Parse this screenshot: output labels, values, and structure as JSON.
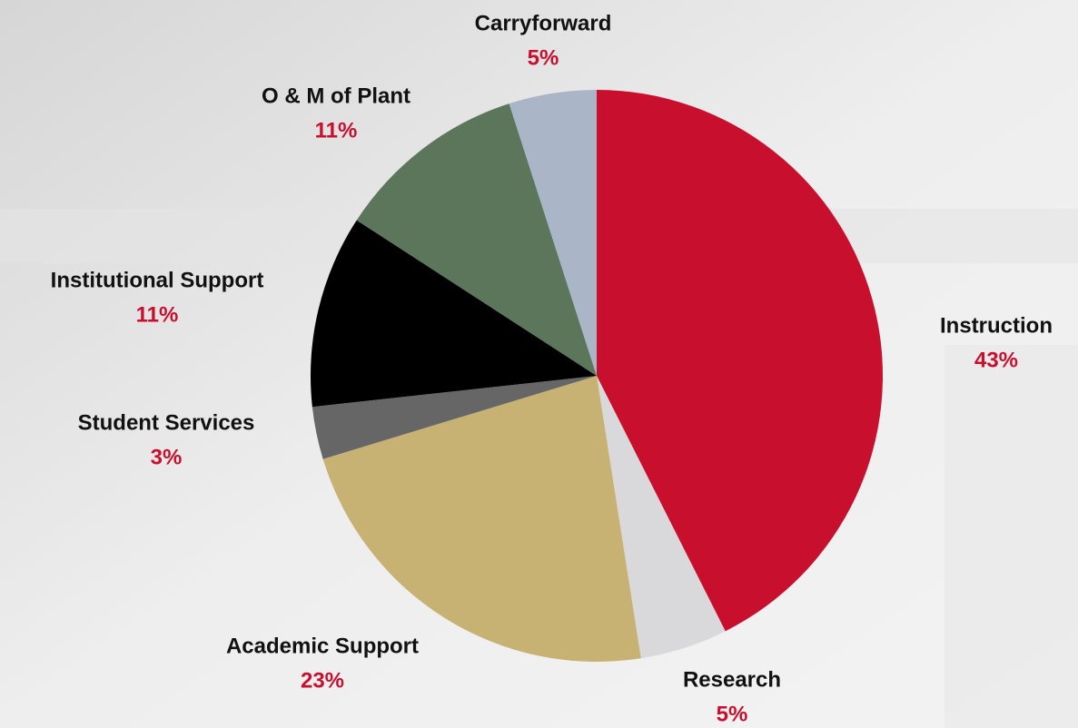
{
  "chart_data": {
    "type": "pie",
    "categories": [
      "Instruction",
      "Research",
      "Academic Support",
      "Student Services",
      "Institutional Support",
      "O & M of Plant",
      "Carryforward"
    ],
    "values": [
      43,
      5,
      23,
      3,
      11,
      11,
      5
    ],
    "value_labels": [
      "43%",
      "5%",
      "23%",
      "3%",
      "11%",
      "11%",
      "5%"
    ],
    "colors": [
      "#c8102e",
      "#d9d9db",
      "#c8b273",
      "#666666",
      "#000000",
      "#5c765c",
      "#aab5c8"
    ],
    "label_color": "#c8102e"
  }
}
